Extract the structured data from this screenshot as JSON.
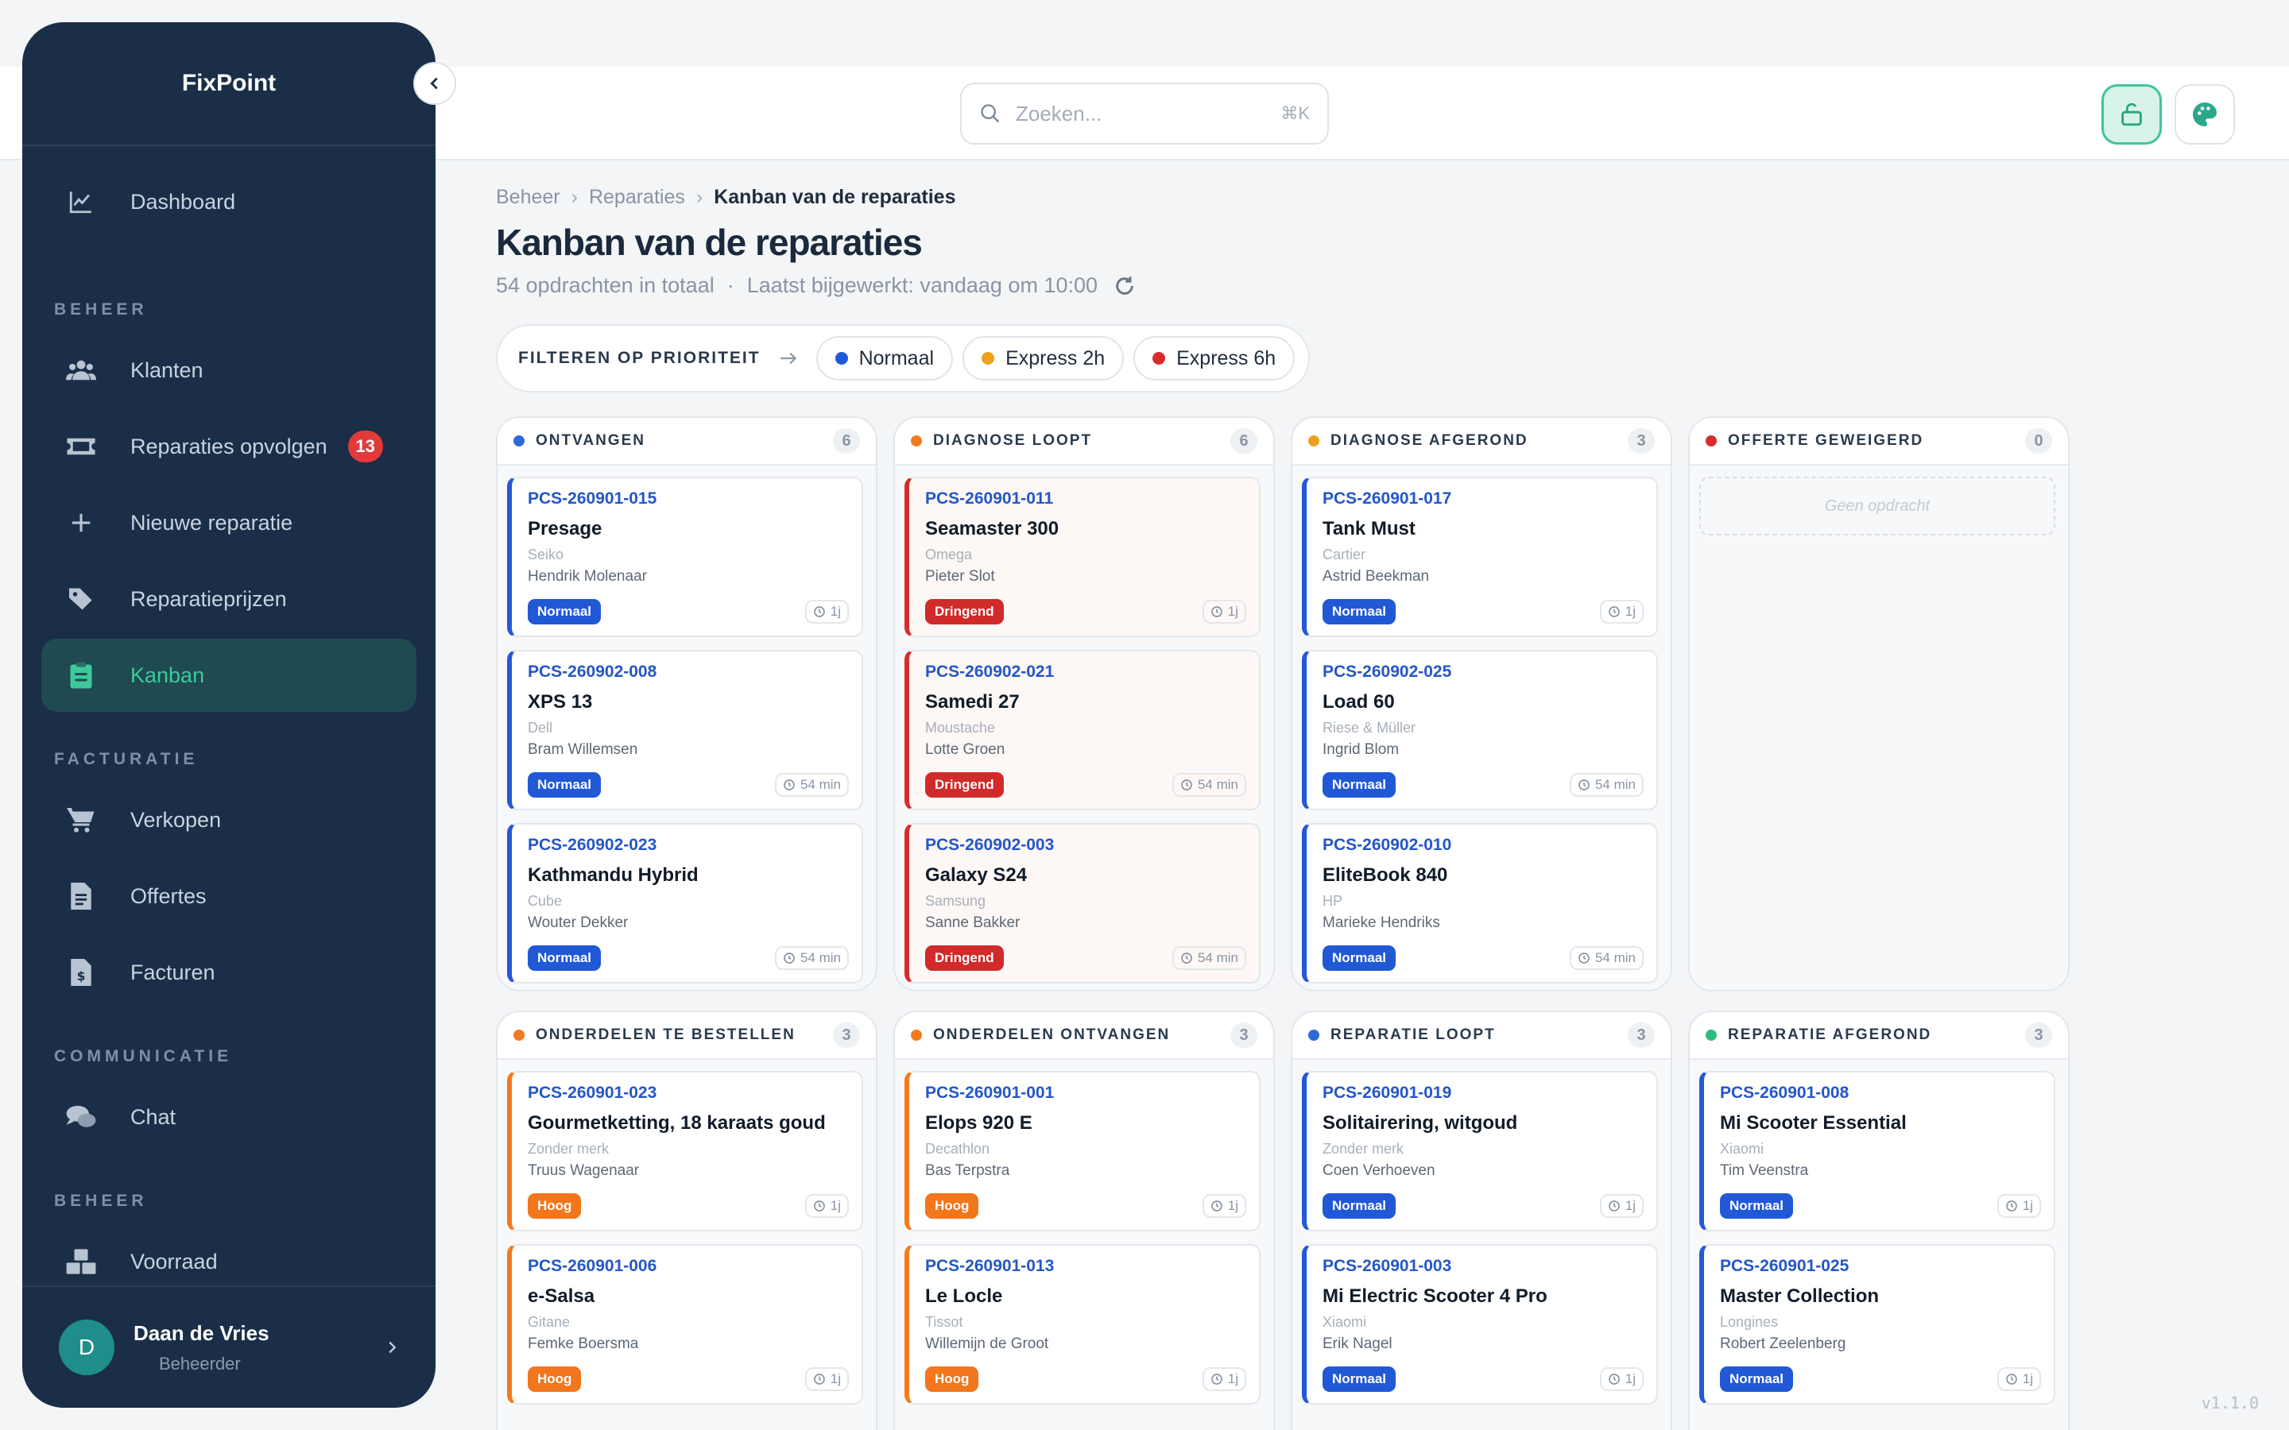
{
  "app": {
    "brand": "FixPoint",
    "version": "v1.1.0"
  },
  "search": {
    "placeholder": "Zoeken...",
    "shortcut": "⌘K"
  },
  "sidebar": {
    "items": [
      {
        "label": "Dashboard",
        "icon": "chart-icon"
      },
      {
        "label": "Klanten",
        "icon": "users-icon"
      },
      {
        "label": "Reparaties opvolgen",
        "icon": "ticket-icon",
        "badge": "13"
      },
      {
        "label": "Nieuwe reparatie",
        "icon": "plus-icon"
      },
      {
        "label": "Reparatieprijzen",
        "icon": "tags-icon"
      },
      {
        "label": "Kanban",
        "icon": "clipboard-icon",
        "active": true
      },
      {
        "label": "Verkopen",
        "icon": "cart-icon"
      },
      {
        "label": "Offertes",
        "icon": "document-icon"
      },
      {
        "label": "Facturen",
        "icon": "invoice-icon"
      },
      {
        "label": "Chat",
        "icon": "chat-icon"
      },
      {
        "label": "Voorraad",
        "icon": "boxes-icon"
      }
    ],
    "sections": [
      "BEHEER",
      "FACTURATIE",
      "COMMUNICATIE",
      "BEHEER"
    ],
    "user": {
      "name": "Daan de Vries",
      "role": "Beheerder",
      "initial": "D"
    }
  },
  "breadcrumb": [
    "Beheer",
    "Reparaties",
    "Kanban van de reparaties"
  ],
  "page": {
    "title": "Kanban van de reparaties",
    "count_text": "54 opdrachten in totaal",
    "updated_text": "Laatst bijgewerkt: vandaag om 10:00"
  },
  "filter": {
    "label": "FILTEREN OP PRIORITEIT",
    "chips": [
      {
        "label": "Normaal",
        "color": "#2158d6"
      },
      {
        "label": "Express 2h",
        "color": "#f0a11c"
      },
      {
        "label": "Express 6h",
        "color": "#d82c2c"
      }
    ]
  },
  "columns": [
    {
      "title": "ONTVANGEN",
      "count": "6",
      "color": "#2f6bd8",
      "cards": [
        {
          "code": "PCS-260901-015",
          "name": "Presage",
          "brand": "Seiko",
          "client": "Hendrik Molenaar",
          "priority": "Normaal",
          "kind": "normaal",
          "age": "1j"
        },
        {
          "code": "PCS-260902-008",
          "name": "XPS 13",
          "brand": "Dell",
          "client": "Bram Willemsen",
          "priority": "Normaal",
          "kind": "normaal",
          "age": "54 min"
        },
        {
          "code": "PCS-260902-023",
          "name": "Kathmandu Hybrid",
          "brand": "Cube",
          "client": "Wouter Dekker",
          "priority": "Normaal",
          "kind": "normaal",
          "age": "54 min"
        }
      ]
    },
    {
      "title": "DIAGNOSE LOOPT",
      "count": "6",
      "color": "#f47a1f",
      "cards": [
        {
          "code": "PCS-260901-011",
          "name": "Seamaster 300",
          "brand": "Omega",
          "client": "Pieter Slot",
          "priority": "Dringend",
          "kind": "dringend",
          "age": "1j"
        },
        {
          "code": "PCS-260902-021",
          "name": "Samedi 27",
          "brand": "Moustache",
          "client": "Lotte Groen",
          "priority": "Dringend",
          "kind": "dringend",
          "age": "54 min"
        },
        {
          "code": "PCS-260902-003",
          "name": "Galaxy S24",
          "brand": "Samsung",
          "client": "Sanne Bakker",
          "priority": "Dringend",
          "kind": "dringend",
          "age": "54 min"
        }
      ]
    },
    {
      "title": "DIAGNOSE AFGEROND",
      "count": "3",
      "color": "#f0a11c",
      "cards": [
        {
          "code": "PCS-260901-017",
          "name": "Tank Must",
          "brand": "Cartier",
          "client": "Astrid Beekman",
          "priority": "Normaal",
          "kind": "normaal",
          "age": "1j"
        },
        {
          "code": "PCS-260902-025",
          "name": "Load 60",
          "brand": "Riese & Müller",
          "client": "Ingrid Blom",
          "priority": "Normaal",
          "kind": "normaal",
          "age": "54 min"
        },
        {
          "code": "PCS-260902-010",
          "name": "EliteBook 840",
          "brand": "HP",
          "client": "Marieke Hendriks",
          "priority": "Normaal",
          "kind": "normaal",
          "age": "54 min"
        }
      ]
    },
    {
      "title": "OFFERTE GEWEIGERD",
      "count": "0",
      "color": "#d82c2c",
      "empty": "Geen opdracht",
      "cards": []
    },
    {
      "title": "ONDERDELEN TE BESTELLEN",
      "count": "3",
      "color": "#f47a1f",
      "cards": [
        {
          "code": "PCS-260901-023",
          "name": "Gourmetketting, 18 karaats goud",
          "brand": "Zonder merk",
          "client": "Truus Wagenaar",
          "priority": "Hoog",
          "kind": "hoog",
          "age": "1j"
        },
        {
          "code": "PCS-260901-006",
          "name": "e-Salsa",
          "brand": "Gitane",
          "client": "Femke Boersma",
          "priority": "Hoog",
          "kind": "hoog",
          "age": "1j"
        }
      ]
    },
    {
      "title": "ONDERDELEN ONTVANGEN",
      "count": "3",
      "color": "#f47a1f",
      "cards": [
        {
          "code": "PCS-260901-001",
          "name": "Elops 920 E",
          "brand": "Decathlon",
          "client": "Bas Terpstra",
          "priority": "Hoog",
          "kind": "hoog",
          "age": "1j"
        },
        {
          "code": "PCS-260901-013",
          "name": "Le Locle",
          "brand": "Tissot",
          "client": "Willemijn de Groot",
          "priority": "Hoog",
          "kind": "hoog",
          "age": "1j"
        }
      ]
    },
    {
      "title": "REPARATIE LOOPT",
      "count": "3",
      "color": "#2f6bd8",
      "cards": [
        {
          "code": "PCS-260901-019",
          "name": "Solitairering, witgoud",
          "brand": "Zonder merk",
          "client": "Coen Verhoeven",
          "priority": "Normaal",
          "kind": "normaal",
          "age": "1j"
        },
        {
          "code": "PCS-260901-003",
          "name": "Mi Electric Scooter 4 Pro",
          "brand": "Xiaomi",
          "client": "Erik Nagel",
          "priority": "Normaal",
          "kind": "normaal",
          "age": "1j"
        }
      ]
    },
    {
      "title": "REPARATIE AFGEROND",
      "count": "3",
      "color": "#2dbb84",
      "cards": [
        {
          "code": "PCS-260901-008",
          "name": "Mi Scooter Essential",
          "brand": "Xiaomi",
          "client": "Tim Veenstra",
          "priority": "Normaal",
          "kind": "normaal",
          "age": "1j"
        },
        {
          "code": "PCS-260901-025",
          "name": "Master Collection",
          "brand": "Longines",
          "client": "Robert Zeelenberg",
          "priority": "Normaal",
          "kind": "normaal",
          "age": "1j"
        }
      ]
    }
  ]
}
